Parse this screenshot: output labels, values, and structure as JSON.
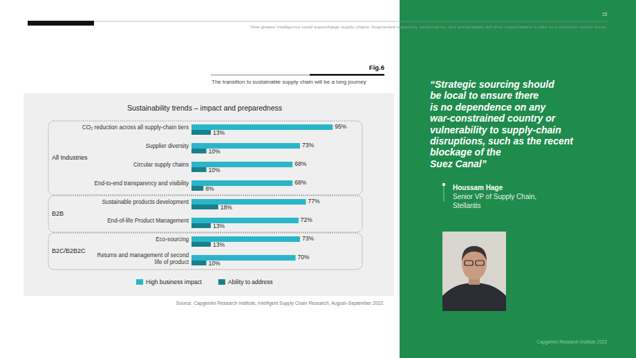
{
  "page": {
    "header": "How greater intelligence could supercharge supply chains: Augmented reasoning, performance, and sustainability will drive organizations to take on a customer-centric focus",
    "page_number": "15",
    "figure_label": "Fig.6",
    "figure_subtitle": "The transition to sustainable supply chain will be a long journey",
    "source": "Source: Capgemini Research Institute, Intelligent Supply Chain Research, August–September 2022.",
    "quote_lines": [
      "“Strategic sourcing should",
      "be local to ensure there",
      "is no dependence on any",
      "war-constrained country or",
      "vulnerability to supply-chain",
      "disruptions, such as the recent",
      "blockage of the",
      "Suez Canal”"
    ],
    "speaker": {
      "name": "Houssam Hage",
      "role_lines": [
        "Senior VP of Supply Chain,",
        "Stellantis"
      ]
    },
    "footer": "Capgemini Research Institute 2022"
  },
  "chart_data": {
    "type": "bar",
    "orientation": "horizontal",
    "title": "Sustainability trends – impact and preparedness",
    "categories": [
      "CO₂ reduction across all supply-chain tiers",
      "Supplier diversity",
      "Circular supply chains",
      "End-to-end transparency and visibility",
      "Sustainable products development",
      "End-of-life Product Management",
      "Eco-sourcing",
      "Returns and management of second life of product"
    ],
    "groups": [
      {
        "label": "All Industries",
        "count": 4
      },
      {
        "label": "B2B",
        "count": 2
      },
      {
        "label": "B2C/B2B2C",
        "count": 2
      }
    ],
    "series": [
      {
        "name": "High business impact",
        "color": "#2bb5c8",
        "values": [
          95,
          73,
          68,
          68,
          77,
          72,
          73,
          70
        ],
        "value_labels": [
          "95%",
          "73%",
          "68%",
          "68%",
          "77%",
          "72%",
          "73%",
          "70%"
        ]
      },
      {
        "name": "Ability to address",
        "color": "#18808d",
        "values": [
          13,
          10,
          10,
          8,
          18,
          13,
          13,
          10
        ],
        "value_labels": [
          "13%",
          "10%",
          "10%",
          "8%",
          "18%",
          "13%",
          "13%",
          "10%"
        ]
      }
    ],
    "xlim": [
      0,
      100
    ],
    "tick_labels": false,
    "data_labels": true,
    "legend": "bottom",
    "grid": false
  }
}
